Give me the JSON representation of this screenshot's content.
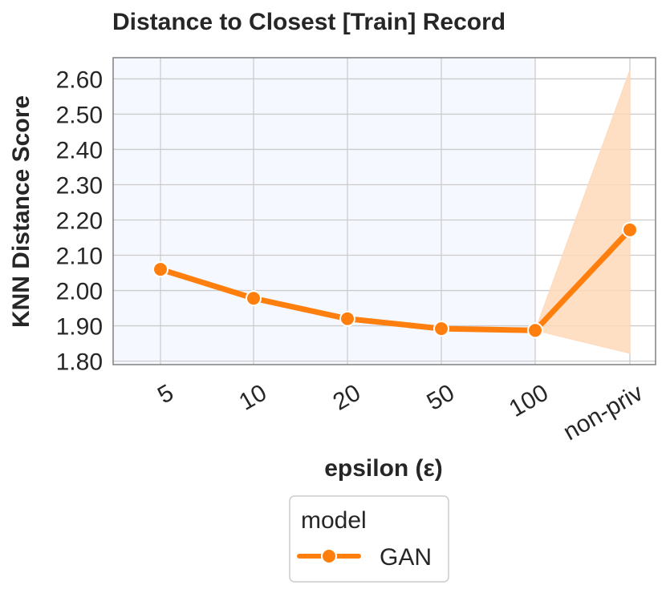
{
  "chart_data": {
    "type": "line",
    "title": "Distance to Closest [Train] Record",
    "xlabel": "epsilon (ε)",
    "ylabel": "KNN Distance Score",
    "categories": [
      "5",
      "10",
      "20",
      "50",
      "100",
      "non-priv"
    ],
    "shaded_categories": [
      "5",
      "10",
      "20",
      "50",
      "100"
    ],
    "ylim": [
      1.79,
      2.66
    ],
    "yticks": [
      "1.80",
      "1.90",
      "2.00",
      "2.10",
      "2.20",
      "2.30",
      "2.40",
      "2.50",
      "2.60"
    ],
    "grid": true,
    "legend_title": "model",
    "legend_position": "bottom-center",
    "series": [
      {
        "name": "GAN",
        "color": "#ff7f0e",
        "values": [
          2.06,
          1.978,
          1.92,
          1.892,
          1.887,
          2.172
        ],
        "ci_lower": [
          2.06,
          1.978,
          1.92,
          1.892,
          1.887,
          1.822
        ],
        "ci_upper": [
          2.06,
          1.978,
          1.92,
          1.892,
          1.887,
          2.625
        ]
      }
    ],
    "colors": {
      "plot_background": "#f5f8fe",
      "grid": "#cccccc",
      "frame": "#808080",
      "ci_fill": "#ffd9b8"
    }
  }
}
